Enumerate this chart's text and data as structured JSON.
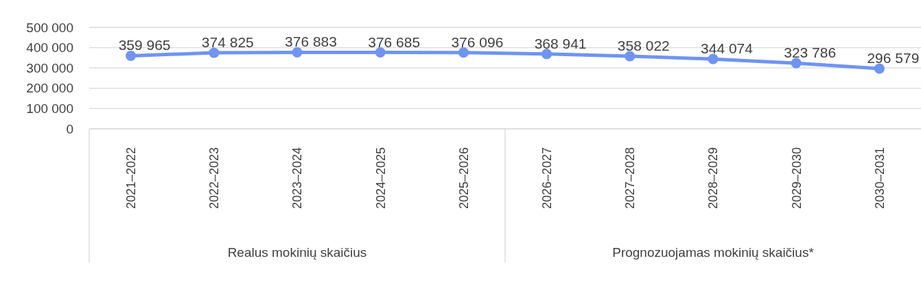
{
  "chart_data": {
    "type": "line",
    "categories": [
      "2021–2022",
      "2022–2023",
      "2023–2024",
      "2024–2025",
      "2025–2026",
      "2026–2027",
      "2027–2028",
      "2028–2029",
      "2029–2030",
      "2030–2031"
    ],
    "series": [
      {
        "color": "#6f94f2",
        "values": [
          359965,
          374825,
          376883,
          376685,
          376096,
          368941,
          358022,
          344074,
          323786,
          296579
        ],
        "value_labels": [
          "359 965",
          "374 825",
          "376 883",
          "376 685",
          "376 096",
          "368 941",
          "358 022",
          "344 074",
          "323 786",
          "296 579"
        ]
      }
    ],
    "ylim": [
      0,
      500000
    ],
    "yticks": [
      0,
      {
        "value": 100000,
        "label": "100 000"
      },
      {
        "value": 200000,
        "label": "200 000"
      },
      {
        "value": 300000,
        "label": "300 000"
      },
      {
        "value": 400000,
        "label": "400 000"
      },
      {
        "value": 500000,
        "label": "500 000"
      }
    ],
    "grid": "y",
    "marker": "circle",
    "line_style": "solid",
    "annotations": [
      "Realus mokinių skaičius",
      "Prognozuojamas mokinių skaičius*"
    ]
  }
}
